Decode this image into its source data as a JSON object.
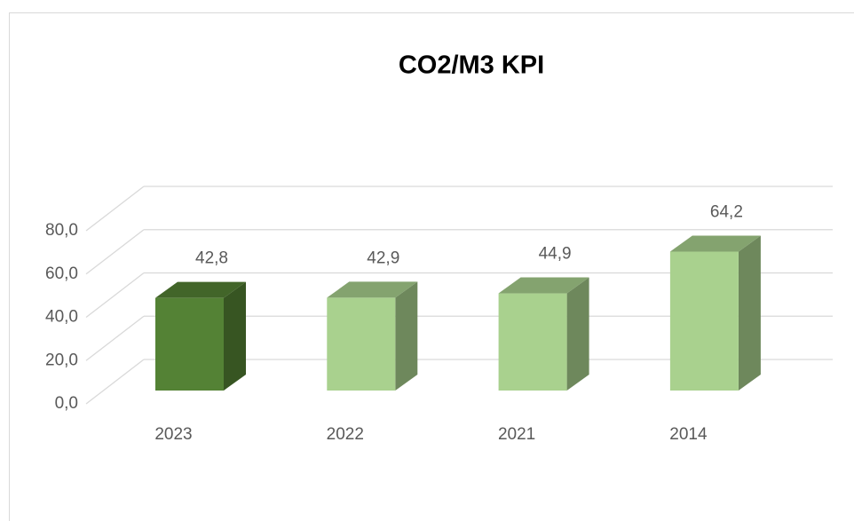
{
  "chart_data": {
    "type": "bar3d",
    "title": "CO2/M3 KPI",
    "categories": [
      "2023",
      "2022",
      "2021",
      "2014"
    ],
    "values": [
      42.8,
      42.9,
      44.9,
      64.2
    ],
    "value_labels": [
      "42,8",
      "42,9",
      "44,9",
      "64,2"
    ],
    "colors": [
      "#548235",
      "#a9d18e",
      "#a9d18e",
      "#a9d18e"
    ],
    "ylim": [
      0,
      80
    ],
    "yticks": [
      {
        "value": 0,
        "label": "0,0"
      },
      {
        "value": 20,
        "label": "20,0"
      },
      {
        "value": 40,
        "label": "40,0"
      },
      {
        "value": 60,
        "label": "60,0"
      },
      {
        "value": 80,
        "label": "80,0"
      }
    ],
    "grid": true
  }
}
